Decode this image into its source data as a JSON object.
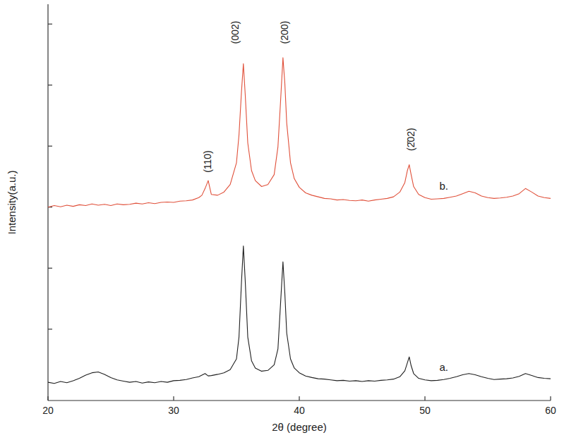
{
  "chart_data": {
    "type": "line",
    "x_label": "2θ (degree)",
    "y_label": "Intensity(a.u.)",
    "xlim": [
      20,
      60
    ],
    "xticks": [
      20,
      30,
      40,
      50,
      60
    ],
    "ylim": [
      0,
      100
    ],
    "yticks": [
      18,
      33.4,
      48.8,
      64.2,
      79.6,
      95
    ],
    "grid": false,
    "tick_labels": "x",
    "x": [
      20,
      20.5,
      21,
      21.5,
      22,
      22.5,
      23,
      23.5,
      24,
      24.5,
      25,
      25.5,
      26,
      26.5,
      27,
      27.5,
      28,
      28.5,
      29,
      29.5,
      30,
      30.5,
      31,
      31.5,
      32,
      32.25,
      32.5,
      32.75,
      33,
      33.5,
      34,
      34.5,
      35,
      35.2,
      35.4,
      35.55,
      35.7,
      35.9,
      36.2,
      36.5,
      37,
      37.5,
      38,
      38.3,
      38.5,
      38.7,
      38.85,
      39,
      39.3,
      39.6,
      40,
      40.5,
      41,
      41.5,
      42,
      42.5,
      43,
      43.5,
      44,
      44.5,
      45,
      45.5,
      46,
      46.5,
      47,
      47.5,
      48,
      48.4,
      48.6,
      48.75,
      48.9,
      49.1,
      49.5,
      50,
      50.5,
      51,
      51.5,
      52,
      52.5,
      53,
      53.5,
      54,
      54.5,
      55,
      55.5,
      56,
      56.5,
      57,
      57.5,
      58,
      58.5,
      59,
      59.5,
      60
    ],
    "series": [
      {
        "name": "a.",
        "color": "#1f1f1f",
        "line_style": "solid",
        "values": [
          4.6,
          4.3,
          4.8,
          4.5,
          5.0,
          5.6,
          6.4,
          7.0,
          7.2,
          6.6,
          5.8,
          5.2,
          4.9,
          4.6,
          4.8,
          4.4,
          4.7,
          4.5,
          4.8,
          4.6,
          5.0,
          5.1,
          5.3,
          5.7,
          6.0,
          6.4,
          6.8,
          6.2,
          6.3,
          6.6,
          7.0,
          7.8,
          10.5,
          16,
          30,
          39,
          30,
          16,
          10,
          8.2,
          7.4,
          7.6,
          9.0,
          13,
          24,
          35,
          27,
          17,
          10.5,
          8.2,
          7.0,
          6.2,
          5.8,
          5.5,
          5.4,
          5.2,
          5.0,
          5.1,
          4.9,
          5.0,
          4.8,
          5.0,
          4.9,
          5.1,
          5.2,
          5.4,
          6.0,
          7.5,
          9.5,
          11,
          8.8,
          6.8,
          5.6,
          5.2,
          5.0,
          5.1,
          5.3,
          5.6,
          6.0,
          6.5,
          6.8,
          6.5,
          6.0,
          5.6,
          5.3,
          5.4,
          5.5,
          5.7,
          6.1,
          6.8,
          6.3,
          5.8,
          5.6,
          5.5
        ]
      },
      {
        "name": "b.",
        "color": "#e0503a",
        "line_style": "solid",
        "values": [
          48.8,
          49.2,
          48.9,
          49.3,
          49.0,
          49.4,
          49.2,
          49.6,
          49.3,
          49.5,
          49.2,
          49.6,
          49.4,
          49.5,
          49.8,
          49.6,
          49.9,
          49.7,
          50.0,
          50.1,
          50.0,
          50.3,
          50.4,
          50.6,
          51.2,
          51.8,
          53.5,
          55.5,
          52,
          51.8,
          52.6,
          54.5,
          60,
          67,
          78,
          85,
          77,
          65,
          58,
          55.5,
          54,
          54.5,
          57,
          64,
          75,
          86.5,
          80,
          70,
          60,
          56,
          53.8,
          52.4,
          51.8,
          51.4,
          51.0,
          50.9,
          50.6,
          50.7,
          50.5,
          50.4,
          50.6,
          50.3,
          50.6,
          50.8,
          51.0,
          51.4,
          52.6,
          55,
          58,
          59.5,
          57,
          54,
          52,
          51.2,
          50.8,
          50.9,
          51.0,
          51.3,
          51.6,
          52.2,
          52.8,
          52.4,
          51.6,
          51.2,
          51.0,
          51.1,
          51.3,
          51.6,
          52.2,
          53.5,
          52.6,
          51.6,
          51.2,
          51.0
        ]
      }
    ],
    "annotations": [
      {
        "text": "(110)",
        "x": 32.7,
        "y": 57.5
      },
      {
        "text": "(002)",
        "x": 34.9,
        "y": 90
      },
      {
        "text": "(200)",
        "x": 38.8,
        "y": 90
      },
      {
        "text": "(2̄02)",
        "x": 48.9,
        "y": 63
      }
    ]
  }
}
